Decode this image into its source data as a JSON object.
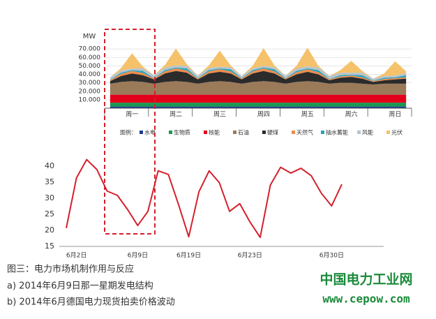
{
  "chart_data": [
    {
      "type": "area",
      "y_label": "MW",
      "legend_title": "图例：",
      "categories": [
        null,
        null,
        "周一",
        null,
        null,
        null,
        "周二",
        null,
        null,
        null,
        "周三",
        null,
        null,
        null,
        "周四",
        null,
        null,
        null,
        "周五",
        null,
        null,
        null,
        "周六",
        null,
        null,
        null,
        "周日",
        null
      ],
      "ylim": [
        0,
        80000
      ],
      "yticks": [
        {
          "value": 10000,
          "label": "10.000"
        },
        {
          "value": 20000,
          "label": "20.000"
        },
        {
          "value": 30000,
          "label": "30.000"
        },
        {
          "value": 40000,
          "label": "40.000"
        },
        {
          "value": 50000,
          "label": "50.000"
        },
        {
          "value": 60000,
          "label": "60.000"
        },
        {
          "value": 70000,
          "label": "70.000"
        }
      ],
      "grid": true,
      "series": [
        {
          "name": "水电",
          "color": "#1f3a93",
          "values": [
            2000,
            2000,
            2000,
            2000,
            2000,
            2000,
            2000,
            2000,
            2000,
            2000,
            2000,
            2000,
            2000,
            2000,
            2000,
            2000,
            2000,
            2000,
            2000,
            2000,
            2000,
            2000,
            2000,
            2000,
            2000,
            2000,
            2000,
            2000
          ]
        },
        {
          "name": "生物质",
          "color": "#1a9850",
          "values": [
            4500,
            4500,
            4500,
            4500,
            4500,
            4500,
            4500,
            4500,
            4500,
            4500,
            4500,
            4500,
            4500,
            4500,
            4500,
            4500,
            4500,
            4500,
            4500,
            4500,
            4500,
            4500,
            4500,
            4500,
            4500,
            4500,
            4500,
            4500
          ]
        },
        {
          "name": "核能",
          "color": "#e3001b",
          "values": [
            9500,
            9500,
            9500,
            9500,
            9500,
            9500,
            9500,
            9500,
            9500,
            9500,
            9500,
            9500,
            9500,
            9500,
            9500,
            9500,
            9500,
            9500,
            9500,
            9500,
            9500,
            9500,
            9500,
            9500,
            9500,
            9500,
            9500,
            9500
          ]
        },
        {
          "name": "石油",
          "color": "#9b7a5a",
          "values": [
            13000,
            15000,
            16000,
            15000,
            13000,
            15000,
            16000,
            15000,
            13000,
            15000,
            16000,
            15000,
            13000,
            15000,
            16000,
            15000,
            13000,
            15000,
            16000,
            15000,
            13000,
            14000,
            14000,
            13000,
            12000,
            13000,
            13000,
            13000
          ]
        },
        {
          "name": "硬煤",
          "color": "#2b2b2b",
          "values": [
            3000,
            7000,
            9000,
            8000,
            5000,
            10000,
            12000,
            11000,
            5000,
            10000,
            11000,
            10000,
            5000,
            10000,
            12000,
            10000,
            5000,
            9000,
            11000,
            9000,
            4000,
            6000,
            7000,
            6000,
            3000,
            4000,
            5000,
            6000
          ]
        },
        {
          "name": "天然气",
          "color": "#f08c4a",
          "values": [
            1000,
            2500,
            3000,
            2500,
            1000,
            2500,
            3000,
            2500,
            1000,
            2500,
            3000,
            2500,
            1000,
            2500,
            3000,
            2500,
            1000,
            2500,
            3000,
            2500,
            1000,
            1500,
            1500,
            1500,
            1000,
            1500,
            1500,
            1500
          ]
        },
        {
          "name": "抽水蓄能",
          "color": "#2aa3b8",
          "values": [
            500,
            1500,
            1000,
            2500,
            500,
            1500,
            1000,
            2500,
            500,
            1500,
            1000,
            2500,
            500,
            1500,
            1000,
            2500,
            500,
            1500,
            1000,
            2500,
            500,
            1500,
            1000,
            2500,
            500,
            1500,
            1000,
            2500
          ]
        },
        {
          "name": "风能",
          "color": "#b8c4cc",
          "values": [
            3000,
            2500,
            2000,
            3000,
            3500,
            3000,
            2500,
            3000,
            3000,
            2500,
            2000,
            2500,
            2500,
            2000,
            2000,
            2500,
            3000,
            3000,
            2500,
            3000,
            3500,
            3000,
            2500,
            3000,
            2500,
            2000,
            2000,
            2500
          ]
        },
        {
          "name": "光伏",
          "color": "#f5c26b",
          "values": [
            0,
            3000,
            18000,
            2000,
            0,
            3000,
            20000,
            2000,
            0,
            3000,
            19000,
            2000,
            0,
            3000,
            21000,
            2000,
            0,
            3000,
            22000,
            2000,
            0,
            3000,
            14000,
            2000,
            0,
            3000,
            17000,
            2000
          ]
        }
      ]
    },
    {
      "type": "line",
      "categories": [
        null,
        "6月2日",
        null,
        null,
        null,
        null,
        null,
        "6月9日",
        null,
        null,
        null,
        null,
        "6月19日",
        null,
        null,
        null,
        null,
        null,
        "6月23日",
        null,
        null,
        null,
        null,
        null,
        null,
        null,
        "6月30日",
        null
      ],
      "ylim": [
        15,
        43
      ],
      "yticks": [
        15,
        20,
        25,
        30,
        35,
        40
      ],
      "grid": false,
      "color": "#d4202c",
      "values": [
        20.7,
        36.3,
        42,
        38.9,
        32.2,
        30.9,
        26.5,
        21.5,
        25.9,
        38.5,
        37.4,
        28,
        18,
        32,
        38.5,
        34.8,
        25.9,
        28.3,
        22.6,
        17.8,
        34.1,
        39.6,
        37.8,
        39.3,
        37,
        31.5,
        27.6,
        34.3
      ]
    }
  ],
  "caption": {
    "title": "图三：电力市场机制作用与反应",
    "lines": [
      "a) 2014年6月9日那一星期发电结构",
      "b) 2014年6月德国电力现货拍卖价格波动"
    ]
  },
  "watermark": {
    "name": "中国电力工业网",
    "url": "www.cepow.com"
  }
}
